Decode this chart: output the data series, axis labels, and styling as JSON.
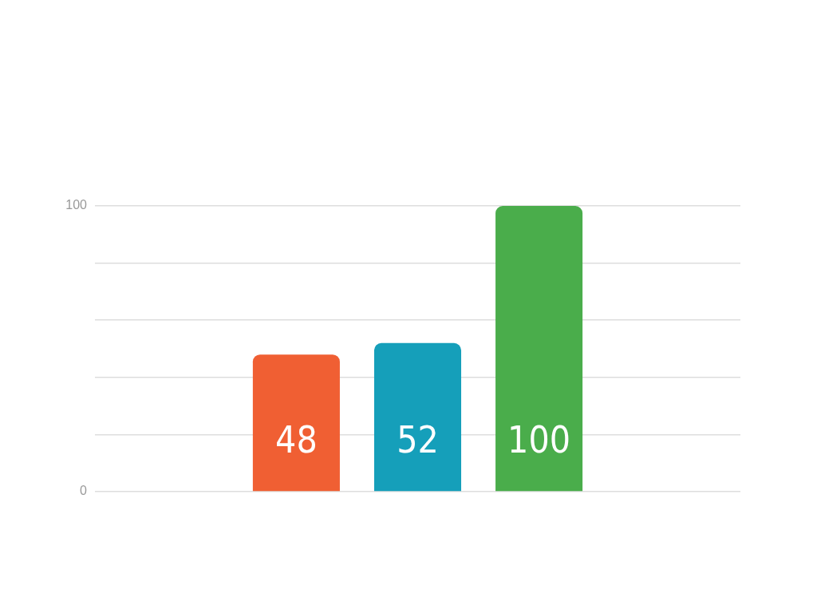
{
  "chart_data": {
    "type": "bar",
    "categories": [
      null
    ],
    "series": [
      {
        "color": "#f05f33",
        "values": [
          48
        ]
      },
      {
        "color": "#159fba",
        "values": [
          52
        ]
      },
      {
        "color": "#4aad4b",
        "values": [
          100
        ]
      }
    ],
    "ylim": [
      0,
      100
    ],
    "yticks": [
      0,
      {
        "value": 20,
        "label": null
      },
      {
        "value": 40,
        "label": null
      },
      {
        "value": 60,
        "label": null
      },
      {
        "value": 80,
        "label": null
      },
      100
    ],
    "grid": "y",
    "data_labels": true
  }
}
